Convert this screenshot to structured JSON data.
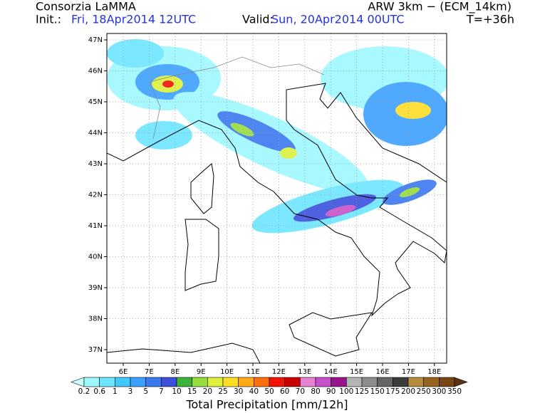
{
  "header": {
    "title": "Consorzia LaMMA",
    "init_label": "Init.:",
    "init_time": "Fri, 18Apr2014 12UTC",
    "model": "ARW 3km − (ECM_14km)",
    "valid_label": "Valid:",
    "valid_time": "Sun, 20Apr2014 00UTC",
    "lead_time": "T=+36h"
  },
  "map": {
    "longitude_labels": [
      "6E",
      "7E",
      "8E",
      "9E",
      "10E",
      "11E",
      "12E",
      "13E",
      "14E",
      "15E",
      "16E",
      "17E",
      "18E"
    ],
    "latitude_labels": [
      "47N",
      "46N",
      "45N",
      "44N",
      "43N",
      "42N",
      "41N",
      "40N",
      "39N",
      "38N",
      "37N"
    ]
  },
  "colorbar": {
    "levels": [
      0.2,
      0.6,
      1,
      3,
      5,
      7,
      10,
      15,
      20,
      25,
      30,
      40,
      50,
      60,
      70,
      80,
      90,
      100,
      125,
      150,
      175,
      200,
      250,
      300,
      350
    ],
    "colors": [
      "#c8ffff",
      "#9ef8ff",
      "#6ee6ff",
      "#40c8ff",
      "#3ca0ff",
      "#3c78f0",
      "#3c50dc",
      "#3cb43c",
      "#96dc3c",
      "#dcf03c",
      "#ffdc28",
      "#ffaa14",
      "#ff6e0a",
      "#f0140a",
      "#c80000",
      "#e682d2",
      "#c850c8",
      "#96148c",
      "#b4b4b4",
      "#8c8c8c",
      "#646464",
      "#3c3c3c",
      "#b48c3c",
      "#96641e",
      "#784614",
      "#5a3214"
    ]
  },
  "footer": {
    "title": "Total Precipitation [mm/12h]"
  }
}
